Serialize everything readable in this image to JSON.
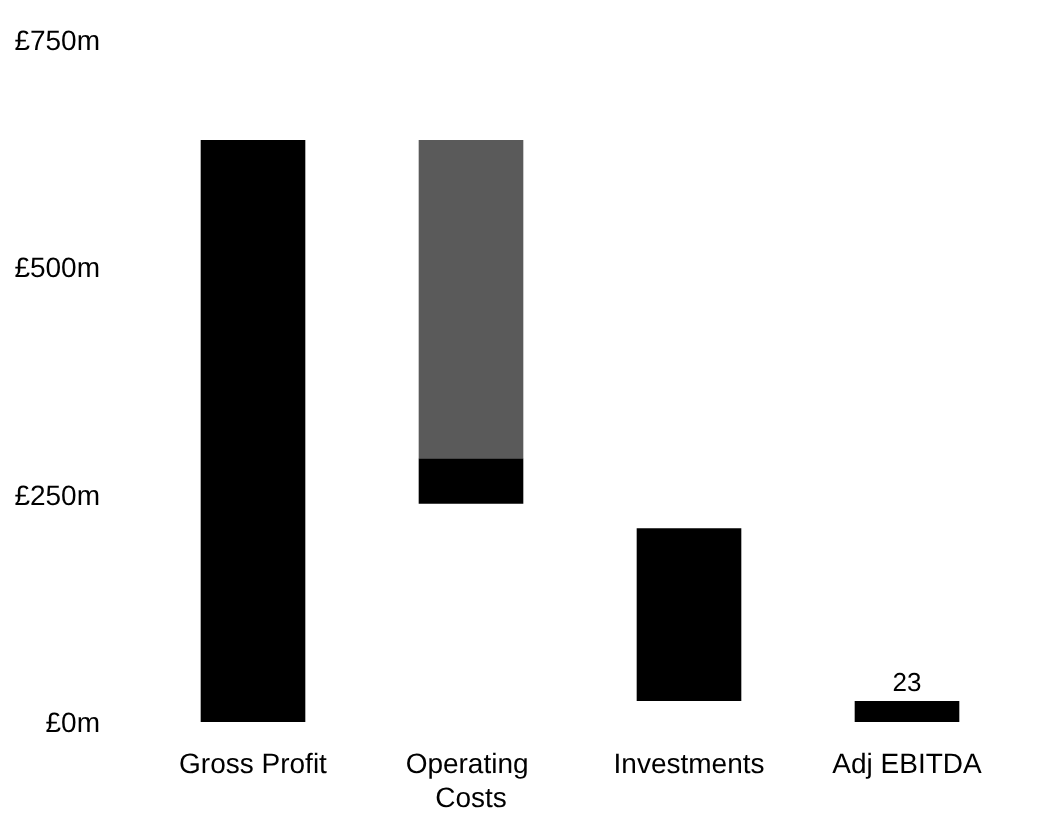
{
  "chart_data": {
    "type": "bar",
    "categories": [
      "Gross Profit",
      "Operating Costs",
      "Investments",
      "Adj EBITDA"
    ],
    "series": [
      {
        "color": "#000000",
        "values": [
          640,
          50,
          190,
          23
        ],
        "base": [
          0,
          240,
          23,
          0
        ],
        "value_labels": [
          null,
          null,
          null,
          "23"
        ]
      },
      {
        "color": "#5a5a5a",
        "values": [
          null,
          350,
          null,
          null
        ],
        "base": [
          null,
          290,
          null,
          null
        ]
      }
    ],
    "ylim": [
      0,
      750
    ],
    "yticks": [
      {
        "value": 0,
        "label": "£0m"
      },
      {
        "value": 250,
        "label": "£250m"
      },
      {
        "value": 500,
        "label": "£500m"
      },
      {
        "value": 750,
        "label": "£750m"
      }
    ],
    "grid": false
  }
}
